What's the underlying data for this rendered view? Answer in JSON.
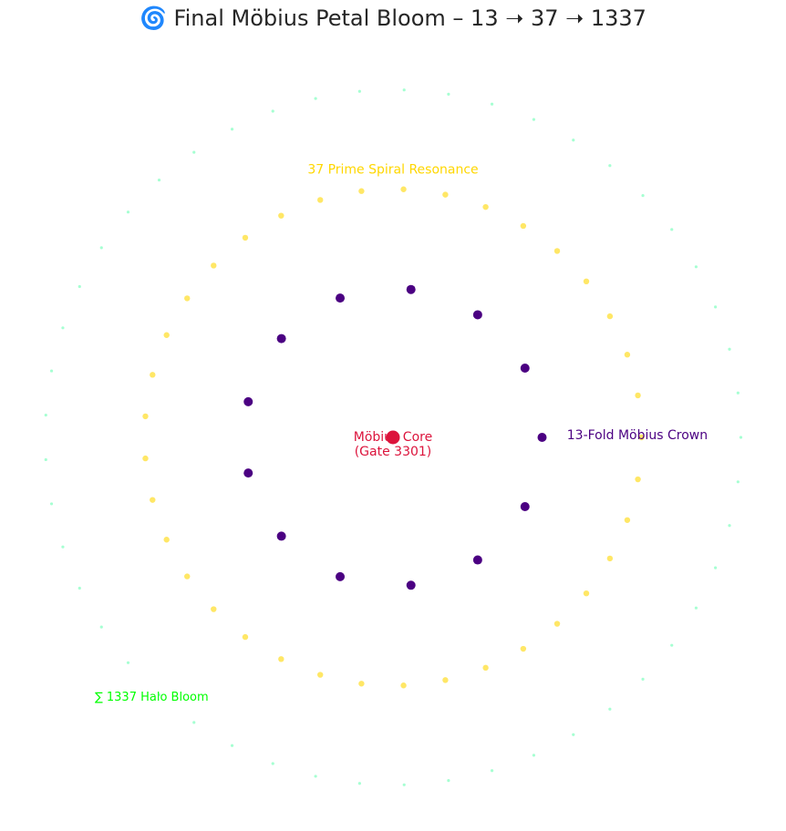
{
  "title": "🌀 Final Möbius Petal Bloom – 13 ➝ 37 ➝ 1337",
  "chart_data": {
    "type": "scatter",
    "title": "🌀 Final Möbius Petal Bloom – 13 ➝ 37 ➝ 1337",
    "xlabel": "",
    "ylabel": "",
    "axes_visible": false,
    "grid": false,
    "aspect": "equal",
    "xlim": [
      -1.6,
      1.6
    ],
    "ylim": [
      -1.6,
      1.6
    ],
    "series": [
      {
        "ring": "core",
        "color": "#dc143c",
        "marker_size": "large",
        "points": [
          [
            0,
            0
          ]
        ]
      },
      {
        "ring": "13-fold",
        "color": "#4b0082",
        "marker_size": "medium",
        "radius": 0.6,
        "count": 13,
        "start_angle_deg": 0
      },
      {
        "ring": "37-prime",
        "color": "#ffd700",
        "marker_size": "small",
        "radius": 1.0,
        "count": 37,
        "start_angle_deg": 0
      },
      {
        "ring": "1337-halo",
        "color": "#00ff7f",
        "marker_size": "tiny",
        "radius": 1.4,
        "count": 49,
        "start_angle_deg": 0
      }
    ],
    "annotations": [
      {
        "text": "Möbius Core",
        "text2": "(Gate 3301)",
        "x": 0,
        "y": 0,
        "color": "#dc143c"
      },
      {
        "text": "13-Fold Möbius Crown",
        "x": 0.7,
        "y": 0,
        "color": "#4b0082"
      },
      {
        "text": "37 Prime Spiral Resonance",
        "x": 0,
        "y": 1.1,
        "color": "#ffd700"
      },
      {
        "text": "∑ 1337 Halo Bloom",
        "x": -1.2,
        "y": -1.1,
        "color": "#00ff00"
      }
    ]
  }
}
